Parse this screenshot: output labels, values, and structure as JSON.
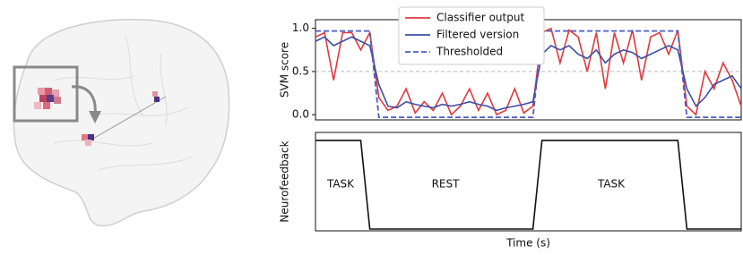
{
  "chart_data": [
    {
      "type": "line",
      "ylabel": "SVM score",
      "ylim": [
        -0.06,
        1.1
      ],
      "yticks": [
        {
          "value": 0,
          "label": "0.0"
        },
        0.5,
        {
          "value": 1,
          "label": "1.0"
        }
      ],
      "hline": 0.5,
      "series": [
        {
          "name": "Classifier output",
          "color": "#e03a3e",
          "style": "solid",
          "values": [
            0.9,
            0.95,
            0.4,
            0.95,
            0.95,
            0.75,
            0.95,
            0.2,
            0.05,
            0.1,
            0.3,
            0.02,
            0.15,
            0.05,
            0.25,
            0.0,
            0.1,
            0.3,
            0.05,
            0.25,
            0.0,
            0.05,
            0.3,
            0.02,
            0.1,
            0.95,
            1.0,
            0.6,
            0.98,
            0.9,
            0.5,
            0.95,
            0.3,
            0.95,
            0.6,
            0.98,
            0.4,
            0.9,
            0.95,
            0.7,
            0.98,
            0.1,
            0.0,
            0.5,
            0.3,
            0.6,
            0.4,
            0.1
          ]
        },
        {
          "name": "Filtered version",
          "color": "#3b4ea6",
          "style": "solid",
          "values": [
            0.85,
            0.9,
            0.8,
            0.85,
            0.9,
            0.85,
            0.8,
            0.35,
            0.1,
            0.08,
            0.15,
            0.12,
            0.1,
            0.08,
            0.12,
            0.1,
            0.12,
            0.15,
            0.12,
            0.1,
            0.05,
            0.08,
            0.1,
            0.12,
            0.15,
            0.7,
            0.8,
            0.75,
            0.8,
            0.7,
            0.65,
            0.75,
            0.6,
            0.7,
            0.75,
            0.72,
            0.65,
            0.7,
            0.75,
            0.8,
            0.75,
            0.3,
            0.1,
            0.2,
            0.35,
            0.4,
            0.45,
            0.3
          ]
        },
        {
          "name": "Thresholded",
          "color": "#4a5bc4",
          "style": "dashed",
          "values": [
            0.97,
            0.97,
            0.97,
            0.97,
            0.97,
            0.97,
            0.97,
            -0.03,
            -0.03,
            -0.03,
            -0.03,
            -0.03,
            -0.03,
            -0.03,
            -0.03,
            -0.03,
            -0.03,
            -0.03,
            -0.03,
            -0.03,
            -0.03,
            -0.03,
            -0.03,
            -0.03,
            -0.03,
            0.97,
            0.97,
            0.97,
            0.97,
            0.97,
            0.97,
            0.97,
            0.97,
            0.97,
            0.97,
            0.97,
            0.97,
            0.97,
            0.97,
            0.97,
            0.97,
            -0.03,
            -0.03,
            -0.03,
            -0.03,
            -0.03,
            -0.03,
            -0.03
          ]
        }
      ]
    },
    {
      "type": "line",
      "ylabel": "Neurofeedback",
      "xlabel": "Time (s)",
      "ylim": [
        -0.02,
        1.09
      ],
      "annotations": [
        "TASK",
        "REST",
        "TASK"
      ],
      "series": [
        {
          "color": "#111111",
          "style": "solid",
          "values": [
            1,
            1,
            1,
            1,
            1,
            1,
            0,
            0,
            0,
            0,
            0,
            0,
            0,
            0,
            0,
            0,
            0,
            0,
            0,
            0,
            0,
            0,
            0,
            0,
            0,
            1,
            1,
            1,
            1,
            1,
            1,
            1,
            1,
            1,
            1,
            1,
            1,
            1,
            1,
            1,
            1,
            0,
            0,
            0,
            0,
            0,
            0,
            0
          ]
        }
      ]
    }
  ]
}
